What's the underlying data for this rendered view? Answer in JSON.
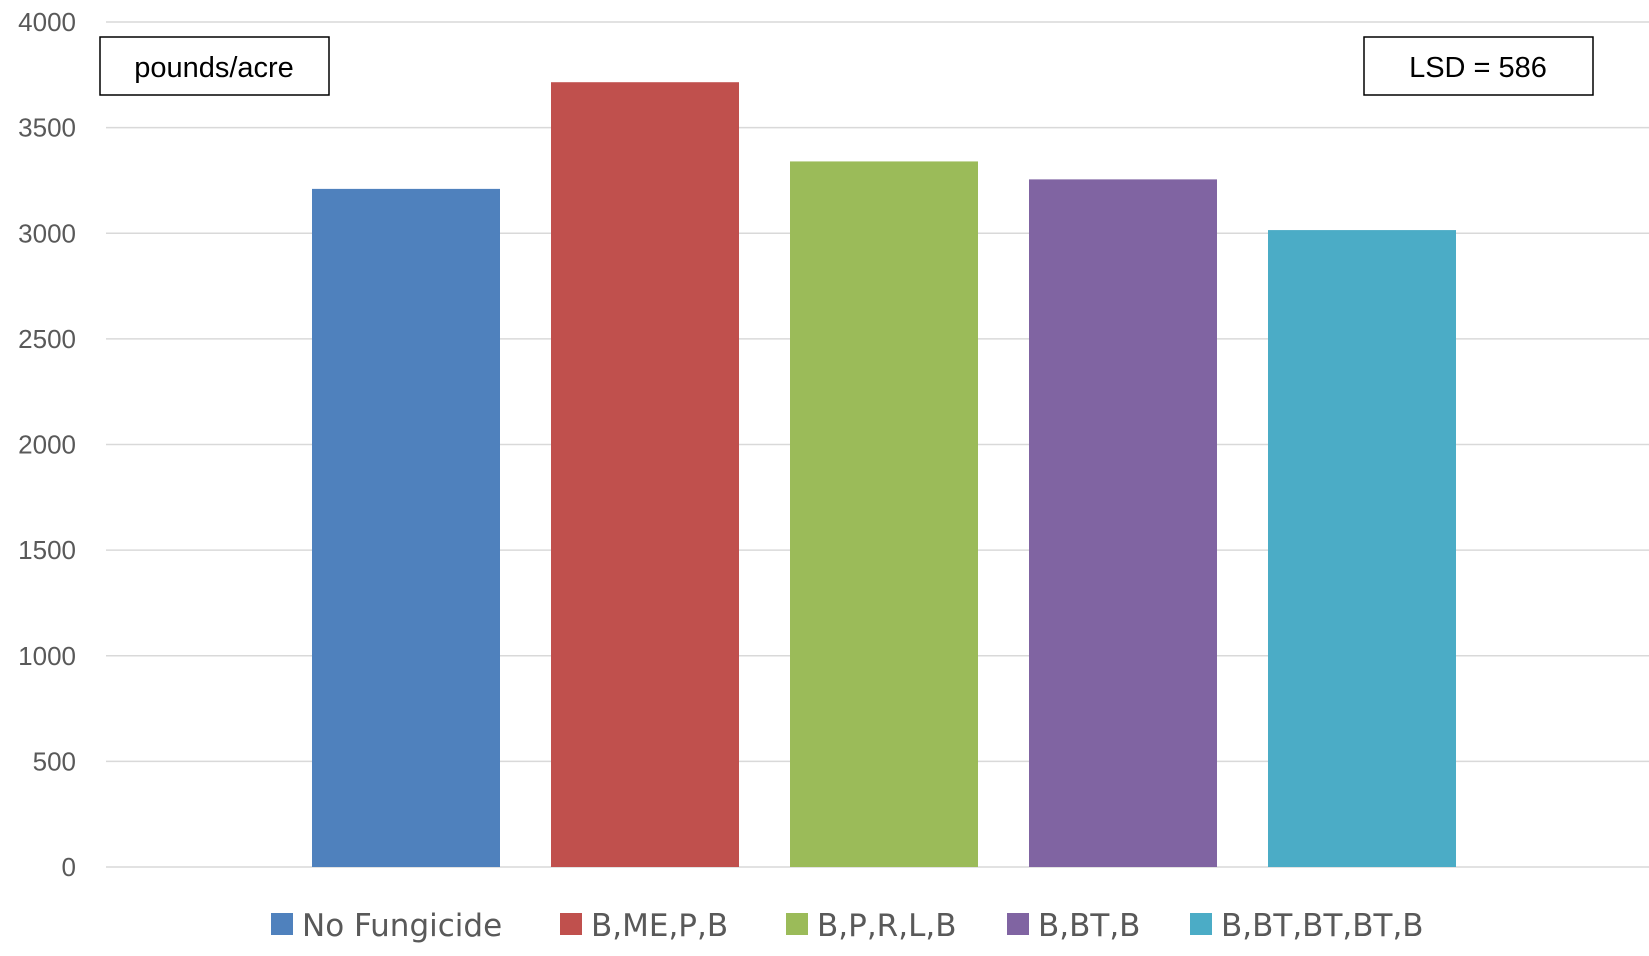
{
  "chart_data": {
    "type": "bar",
    "categories": [
      "No Fungicide",
      "B,ME,P,B",
      "B,P,R,L,B",
      "B,BT,B",
      "B,BT,BT,BT,B"
    ],
    "values": [
      3210,
      3715,
      3340,
      3255,
      3015
    ],
    "colors": [
      "#4f81bd",
      "#c0504d",
      "#9bbb59",
      "#8064a2",
      "#4bacc6"
    ],
    "ylim": [
      0,
      4000
    ],
    "yticks": [
      "0",
      "500",
      "1000",
      "1500",
      "2000",
      "2500",
      "3000",
      "3500",
      "4000"
    ],
    "grid": true,
    "legend_position": "bottom",
    "annotations": {
      "units": "pounds/acre",
      "lsd": "LSD = 586"
    }
  }
}
